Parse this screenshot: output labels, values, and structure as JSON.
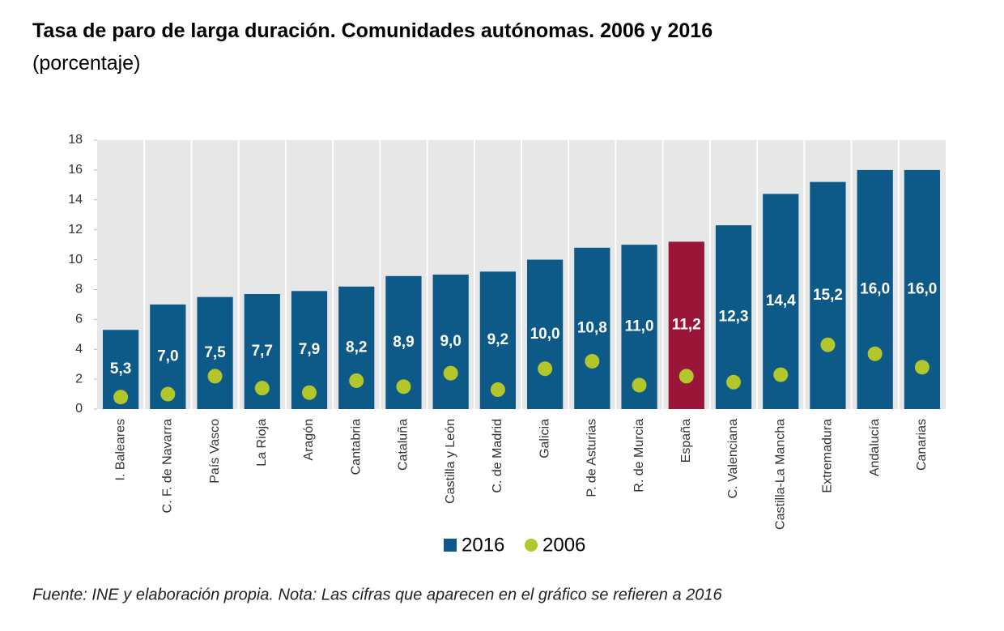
{
  "chart_data": {
    "type": "bar",
    "title": "Tasa de paro de larga duración. Comunidades autónomas. 2006 y 2016",
    "subtitle": "(porcentaje)",
    "note": "Fuente: INE y elaboración propia. Nota: Las cifras que aparecen en el gráfico se refieren a 2016",
    "categories": [
      "I. Baleares",
      "C. F. de Navarra",
      "País Vasco",
      "La Rioja",
      "Aragón",
      "Cantabria",
      "Cataluña",
      "Castilla y León",
      "C. de Madrid",
      "Galicia",
      "P. de Asturias",
      "R. de Murcia",
      "España",
      "C. Valenciana",
      "Castilla-La Mancha",
      "Extremadura",
      "Andalucía",
      "Canarias"
    ],
    "series": [
      {
        "name": "2016",
        "color": "#0d5a88",
        "colors": [
          "#0d5a88",
          "#0d5a88",
          "#0d5a88",
          "#0d5a88",
          "#0d5a88",
          "#0d5a88",
          "#0d5a88",
          "#0d5a88",
          "#0d5a88",
          "#0d5a88",
          "#0d5a88",
          "#0d5a88",
          "#9a1638",
          "#0d5a88",
          "#0d5a88",
          "#0d5a88",
          "#0d5a88",
          "#0d5a88"
        ],
        "values": [
          5.3,
          7.0,
          7.5,
          7.7,
          7.9,
          8.2,
          8.9,
          9.0,
          9.2,
          10.0,
          10.8,
          11.0,
          11.2,
          12.3,
          14.4,
          15.2,
          16.0,
          16.0
        ],
        "value_labels": [
          "5,3",
          "7,0",
          "7,5",
          "7,7",
          "7,9",
          "8,2",
          "8,9",
          "9,0",
          "9,2",
          "10,0",
          "10,8",
          "11,0",
          "11,2",
          "12,3",
          "14,4",
          "15,2",
          "16,0",
          "16,0"
        ]
      },
      {
        "name": "2006",
        "color": "#b3c72a",
        "marker": "circle",
        "values": [
          0.8,
          1.0,
          2.2,
          1.4,
          1.1,
          1.9,
          1.5,
          2.4,
          1.3,
          2.7,
          3.2,
          1.6,
          2.2,
          1.8,
          2.3,
          4.3,
          3.7,
          2.8
        ]
      }
    ],
    "ylim": [
      0,
      18
    ],
    "yticks": [
      0,
      2,
      4,
      6,
      8,
      10,
      12,
      14,
      16,
      18
    ]
  }
}
